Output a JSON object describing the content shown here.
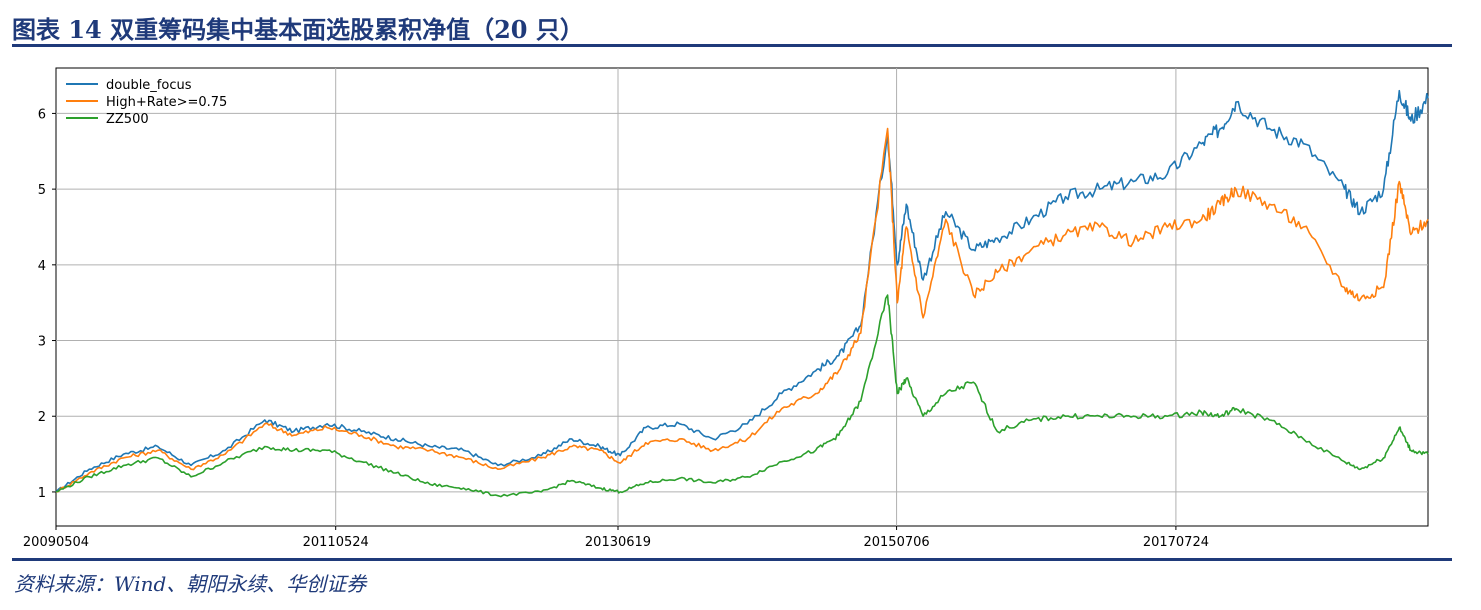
{
  "header": {
    "title": "图表 14   双重筹码集中基本面选股累积净值（20 只）"
  },
  "footer": {
    "source": "资料来源：Wind、朝阳永续、华创证券"
  },
  "colors": {
    "brand": "#1f3a7a",
    "series": [
      "#1f77b4",
      "#ff7f0e",
      "#2ca02c"
    ]
  },
  "chart_data": {
    "type": "line",
    "title": "",
    "xlabel": "",
    "ylabel": "",
    "x_ticks": [
      "20090504",
      "20110524",
      "20130619",
      "20150706",
      "20170724"
    ],
    "x_tick_dates": [
      "2009-05-04",
      "2011-05-24",
      "2013-06-19",
      "2015-07-06",
      "2017-07-24"
    ],
    "xlim": [
      "2009-05-04",
      "2019-05-31"
    ],
    "y_ticks": [
      1,
      2,
      3,
      4,
      5,
      6
    ],
    "ylim": [
      0.55,
      6.6
    ],
    "grid": true,
    "legend_position": "top-left",
    "x": [
      "2009-05-04",
      "2009-08-01",
      "2009-11-01",
      "2010-02-01",
      "2010-05-01",
      "2010-08-01",
      "2010-11-15",
      "2011-02-01",
      "2011-05-01",
      "2011-08-01",
      "2011-11-01",
      "2012-02-01",
      "2012-05-01",
      "2012-08-01",
      "2012-11-25",
      "2013-02-15",
      "2013-05-01",
      "2013-06-25",
      "2013-09-01",
      "2013-12-01",
      "2014-03-01",
      "2014-06-01",
      "2014-09-01",
      "2014-12-01",
      "2015-02-01",
      "2015-04-01",
      "2015-06-12",
      "2015-07-08",
      "2015-08-01",
      "2015-09-15",
      "2015-11-15",
      "2016-01-28",
      "2016-04-01",
      "2016-07-01",
      "2016-10-01",
      "2017-01-01",
      "2017-04-01",
      "2017-07-01",
      "2017-10-01",
      "2017-11-20",
      "2018-01-01",
      "2018-04-01",
      "2018-07-01",
      "2018-10-19",
      "2018-12-01",
      "2019-02-01",
      "2019-03-15",
      "2019-04-15",
      "2019-05-31"
    ],
    "series": [
      {
        "name": "double_focus",
        "values": [
          1.0,
          1.3,
          1.5,
          1.6,
          1.35,
          1.55,
          1.95,
          1.8,
          1.9,
          1.8,
          1.7,
          1.6,
          1.55,
          1.35,
          1.48,
          1.7,
          1.6,
          1.48,
          1.85,
          1.9,
          1.7,
          1.9,
          2.3,
          2.6,
          2.8,
          3.2,
          5.75,
          4.0,
          4.8,
          3.8,
          4.7,
          4.2,
          4.35,
          4.6,
          4.9,
          5.0,
          5.1,
          5.2,
          5.6,
          5.8,
          6.15,
          5.8,
          5.6,
          5.0,
          4.7,
          5.0,
          6.3,
          5.9,
          6.2
        ]
      },
      {
        "name": "High+Rate>=0.75",
        "values": [
          1.0,
          1.25,
          1.45,
          1.55,
          1.3,
          1.5,
          1.9,
          1.75,
          1.85,
          1.75,
          1.6,
          1.55,
          1.45,
          1.3,
          1.45,
          1.6,
          1.55,
          1.38,
          1.65,
          1.7,
          1.55,
          1.7,
          2.1,
          2.3,
          2.6,
          3.1,
          5.8,
          3.5,
          4.5,
          3.3,
          4.6,
          3.6,
          3.9,
          4.2,
          4.4,
          4.5,
          4.3,
          4.5,
          4.6,
          4.8,
          5.0,
          4.8,
          4.5,
          3.7,
          3.55,
          3.7,
          5.1,
          4.4,
          4.6
        ]
      },
      {
        "name": "ZZ500",
        "values": [
          1.0,
          1.2,
          1.35,
          1.45,
          1.2,
          1.4,
          1.6,
          1.55,
          1.55,
          1.4,
          1.25,
          1.1,
          1.05,
          0.95,
          1.0,
          1.15,
          1.05,
          1.0,
          1.12,
          1.18,
          1.12,
          1.2,
          1.4,
          1.55,
          1.75,
          2.2,
          3.6,
          2.3,
          2.5,
          2.0,
          2.3,
          2.45,
          1.8,
          1.95,
          2.0,
          2.0,
          2.0,
          2.0,
          2.05,
          2.0,
          2.1,
          1.95,
          1.7,
          1.4,
          1.3,
          1.45,
          1.85,
          1.55,
          1.5
        ]
      }
    ]
  }
}
